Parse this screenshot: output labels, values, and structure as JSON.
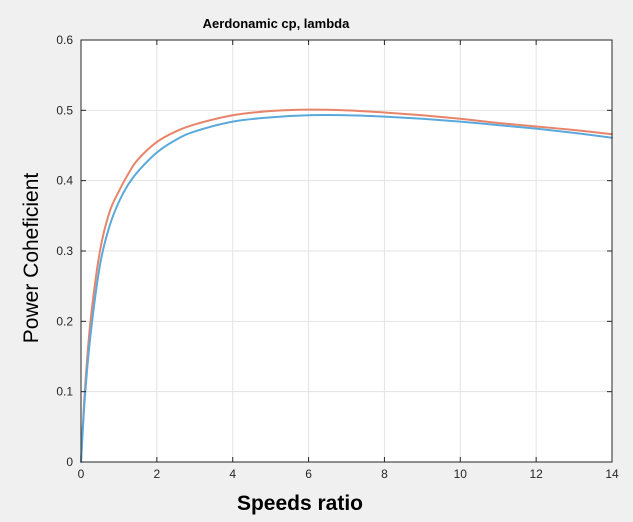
{
  "chart_data": {
    "type": "line",
    "title": "Aerdonamic   cp, lambda",
    "xlabel": "Speeds ratio",
    "ylabel": "Power Coheficient",
    "xlim": [
      0,
      14
    ],
    "ylim": [
      0,
      0.6
    ],
    "xticks": [
      0,
      2,
      4,
      6,
      8,
      10,
      12,
      14
    ],
    "yticks": [
      0,
      0.1,
      0.2,
      0.3,
      0.4,
      0.5,
      0.6
    ],
    "xtick_labels": [
      "0",
      "2",
      "4",
      "6",
      "8",
      "10",
      "12",
      "14"
    ],
    "ytick_labels": [
      "0",
      "0.1",
      "0.2",
      "0.3",
      "0.4",
      "0.5",
      "0.6"
    ],
    "grid": true,
    "legend": "none",
    "series": [
      {
        "color": "#e8846a",
        "x": [
          0,
          0.1,
          0.25,
          0.5,
          0.75,
          1,
          1.25,
          1.5,
          2,
          2.5,
          3,
          4,
          5,
          6,
          7,
          8,
          9,
          10,
          11,
          12,
          13,
          14
        ],
        "y": [
          0,
          0.1,
          0.2,
          0.3,
          0.355,
          0.385,
          0.41,
          0.43,
          0.455,
          0.47,
          0.48,
          0.493,
          0.499,
          0.501,
          0.5,
          0.497,
          0.493,
          0.488,
          0.482,
          0.477,
          0.472,
          0.466
        ]
      },
      {
        "color": "#5aa9dc",
        "x": [
          0,
          0.1,
          0.25,
          0.5,
          0.75,
          1,
          1.25,
          1.5,
          2,
          2.5,
          3,
          4,
          5,
          6,
          7,
          8,
          9,
          10,
          11,
          12,
          13,
          14
        ],
        "y": [
          0,
          0.09,
          0.18,
          0.28,
          0.335,
          0.37,
          0.395,
          0.413,
          0.44,
          0.458,
          0.47,
          0.484,
          0.49,
          0.493,
          0.493,
          0.491,
          0.488,
          0.484,
          0.479,
          0.474,
          0.468,
          0.461
        ]
      }
    ]
  }
}
